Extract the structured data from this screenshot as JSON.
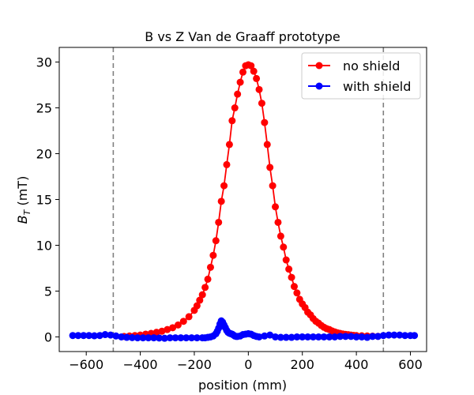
{
  "chart_data": {
    "type": "line",
    "title": "B vs Z Van de Graaff prototype",
    "xlabel": "position (mm)",
    "ylabel_main": "B",
    "ylabel_sub": "T",
    "ylabel_rest": " (mT)",
    "xlim": [
      -700,
      660
    ],
    "ylim": [
      -1.6,
      31.6
    ],
    "xticks": [
      -600,
      -400,
      -200,
      0,
      200,
      400,
      600
    ],
    "yticks": [
      0,
      5,
      10,
      15,
      20,
      25,
      30
    ],
    "grid": false,
    "legend_position": "top-right",
    "vlines": [
      -500,
      500
    ],
    "vline_color": "#808080",
    "series": [
      {
        "name": "no shield",
        "color": "#ff0000",
        "x": [
          -460,
          -440,
          -420,
          -400,
          -380,
          -360,
          -340,
          -320,
          -300,
          -280,
          -260,
          -240,
          -220,
          -200,
          -190,
          -180,
          -170,
          -160,
          -150,
          -140,
          -130,
          -120,
          -110,
          -100,
          -90,
          -80,
          -70,
          -60,
          -50,
          -40,
          -30,
          -20,
          -10,
          0,
          10,
          20,
          30,
          40,
          50,
          60,
          70,
          80,
          90,
          100,
          110,
          120,
          130,
          140,
          150,
          160,
          170,
          180,
          190,
          200,
          210,
          220,
          230,
          240,
          250,
          260,
          270,
          280,
          290,
          300,
          310,
          320,
          330,
          340,
          350,
          360,
          370,
          380,
          390,
          400,
          420,
          440,
          460,
          480
        ],
        "y": [
          0.05,
          0.1,
          0.15,
          0.2,
          0.3,
          0.38,
          0.5,
          0.62,
          0.8,
          1.0,
          1.3,
          1.7,
          2.2,
          2.9,
          3.4,
          4.0,
          4.6,
          5.4,
          6.3,
          7.6,
          8.9,
          10.5,
          12.5,
          14.8,
          16.5,
          18.8,
          21.0,
          23.6,
          25.0,
          26.5,
          27.8,
          28.9,
          29.6,
          29.7,
          29.6,
          29.0,
          28.2,
          27.0,
          25.5,
          23.4,
          21.0,
          18.5,
          16.5,
          14.2,
          12.5,
          11.0,
          9.8,
          8.4,
          7.4,
          6.5,
          5.5,
          4.8,
          4.1,
          3.6,
          3.2,
          2.7,
          2.4,
          2.0,
          1.7,
          1.5,
          1.25,
          1.05,
          0.9,
          0.8,
          0.65,
          0.55,
          0.45,
          0.38,
          0.32,
          0.28,
          0.24,
          0.2,
          0.17,
          0.15,
          0.12,
          0.1,
          0.08,
          0.06
        ]
      },
      {
        "name": "with shield",
        "color": "#0000ff",
        "x": [
          -650,
          -630,
          -610,
          -590,
          -570,
          -550,
          -530,
          -510,
          -490,
          -470,
          -450,
          -430,
          -410,
          -390,
          -370,
          -350,
          -330,
          -310,
          -290,
          -270,
          -250,
          -230,
          -210,
          -190,
          -170,
          -160,
          -150,
          -140,
          -130,
          -120,
          -115,
          -110,
          -105,
          -100,
          -95,
          -90,
          -85,
          -80,
          -75,
          -70,
          -65,
          -60,
          -55,
          -50,
          -45,
          -40,
          -30,
          -20,
          -10,
          0,
          10,
          20,
          30,
          40,
          60,
          80,
          100,
          120,
          140,
          160,
          180,
          200,
          220,
          240,
          260,
          280,
          300,
          320,
          340,
          360,
          380,
          400,
          420,
          440,
          460,
          480,
          500,
          520,
          540,
          560,
          580,
          600,
          615
        ],
        "y": [
          0.15,
          0.15,
          0.15,
          0.15,
          0.12,
          0.15,
          0.25,
          0.2,
          0.1,
          0.0,
          -0.05,
          -0.08,
          -0.1,
          -0.1,
          -0.1,
          -0.1,
          -0.12,
          -0.15,
          -0.1,
          -0.1,
          -0.1,
          -0.1,
          -0.1,
          -0.1,
          -0.1,
          -0.1,
          -0.05,
          0.0,
          0.1,
          0.35,
          0.6,
          0.95,
          1.4,
          1.75,
          1.6,
          1.3,
          1.0,
          0.7,
          0.5,
          0.4,
          0.35,
          0.3,
          0.2,
          0.1,
          0.05,
          0.05,
          0.1,
          0.25,
          0.3,
          0.35,
          0.3,
          0.15,
          0.05,
          0.0,
          0.1,
          0.2,
          0.0,
          -0.05,
          -0.05,
          -0.05,
          0.0,
          0.0,
          0.0,
          0.0,
          0.0,
          0.0,
          0.0,
          0.0,
          0.05,
          0.05,
          0.05,
          0.0,
          0.0,
          -0.05,
          0.05,
          0.05,
          0.15,
          0.2,
          0.2,
          0.2,
          0.15,
          0.15,
          0.15
        ]
      }
    ]
  }
}
